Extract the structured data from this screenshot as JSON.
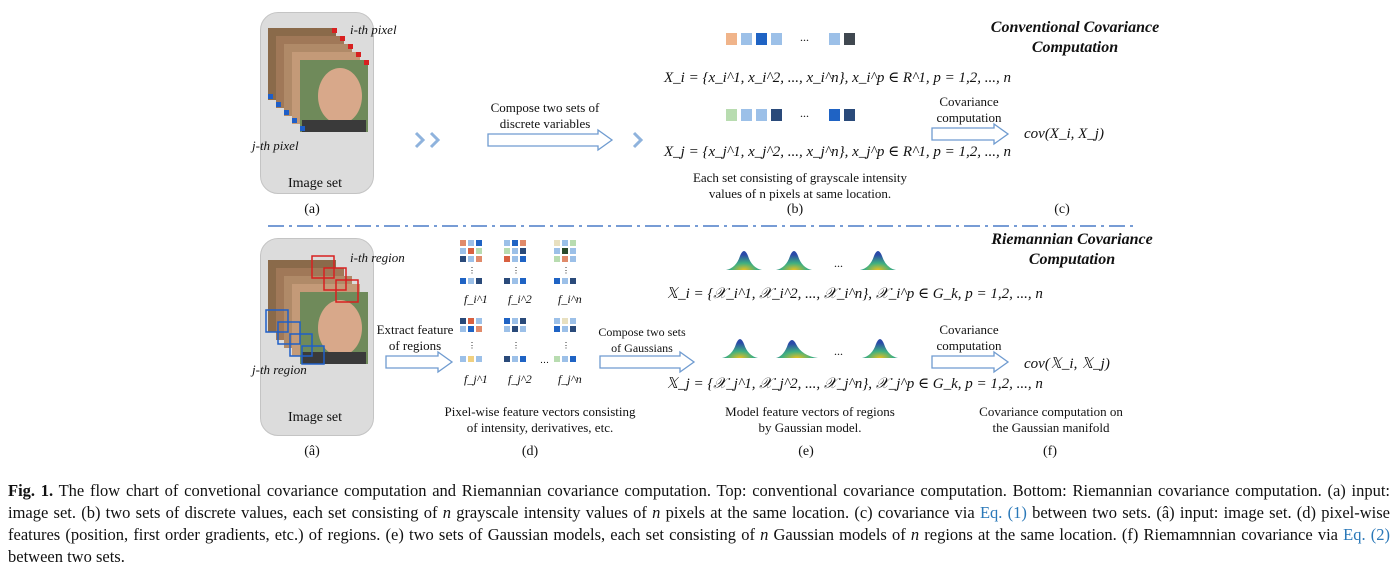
{
  "top": {
    "title_line1": "Conventional Covariance",
    "title_line2": "Computation",
    "image_set_label": "Image set",
    "i_pixel_label": "i-th pixel",
    "j_pixel_label": "j-th pixel",
    "compose_text_line1": "Compose two sets of",
    "compose_text_line2": "discrete variables",
    "formula_xi": "X_i = {x_i^1, x_i^2, ..., x_i^n}, x_i^p ∈ R^1, p = 1,2, ..., n",
    "formula_xj": "X_j = {x_j^1, x_j^2, ..., x_j^n}, x_j^p ∈ R^1, p = 1,2, ..., n",
    "desc_line1": "Each set consisting of grayscale intensity",
    "desc_line2": "values of n pixels at same location.",
    "cov_text_line1": "Covariance",
    "cov_text_line2": "computation",
    "cov_result": "cov(X_i, X_j)",
    "label_a": "(a)",
    "label_b": "(b)",
    "label_c": "(c)",
    "dots": "..."
  },
  "bottom": {
    "title_line1": "Riemannian Covariance",
    "title_line2": "Computation",
    "image_set_label": "Image set",
    "i_region_label": "i-th region",
    "j_region_label": "j-th region",
    "extract_line1": "Extract feature",
    "extract_line2": "of regions",
    "compose_line1": "Compose two sets",
    "compose_line2": "of Gaussians",
    "feature_desc_line1": "Pixel-wise feature vectors consisting",
    "feature_desc_line2": "of intensity, derivatives, etc.",
    "model_desc_line1": "Model feature vectors of regions",
    "model_desc_line2": "by Gaussian model.",
    "formula_xi": "𝕏_i = {𝒳_i^1, 𝒳_i^2, ..., 𝒳_i^n}, 𝒳_i^p ∈ G_k, p = 1,2, ..., n",
    "formula_xj": "𝕏_j = {𝒳_j^1, 𝒳_j^2, ..., 𝒳_j^n}, 𝒳_j^p ∈ G_k, p = 1,2, ..., n",
    "cov_text_line1": "Covariance",
    "cov_text_line2": "computation",
    "cov_result": "cov(𝕏_i, 𝕏_j)",
    "manifold_line1": "Covariance computation on",
    "manifold_line2": "the Gaussian manifold",
    "label_a": "(â)",
    "label_d": "(d)",
    "label_e": "(e)",
    "label_f": "(f)",
    "feature_labels": [
      "f_i^1",
      "f_i^2",
      "f_i^n",
      "f_j^1",
      "f_j^2",
      "f_j^n"
    ],
    "dots": "..."
  },
  "caption": {
    "fig_label": "Fig. 1.",
    "part1": " The flow chart of convetional covariance computation and Riemannian covariance computation. Top: conventional covariance computation. Bottom: Riemannian covariance computation. (a) input: image set. (b) two sets of discrete values, each set consisting of ",
    "n1": "n",
    "part2": " grayscale intensity values of ",
    "n2": "n",
    "part3": " pixels at the same location. (c) covariance via ",
    "eq1": "Eq. (1)",
    "part4": " between two sets. (â) input: image set. (d) pixel-wise features (position, first order gradients, etc.) of regions. (e) two sets of Gaussian models, each set consisting of ",
    "n3": "n",
    "part5": " Gaussian models of ",
    "n4": "n",
    "part6": " regions at the same location. (f) Riemamnnian covariance via ",
    "eq2": "Eq. (2)",
    "part7": " between two sets."
  },
  "colors": {
    "divider": "#4a7cc7",
    "arrow_stroke": "#6f9bd0",
    "panel_bg": "#dcdcdc",
    "eq_link": "#2a78b8"
  }
}
